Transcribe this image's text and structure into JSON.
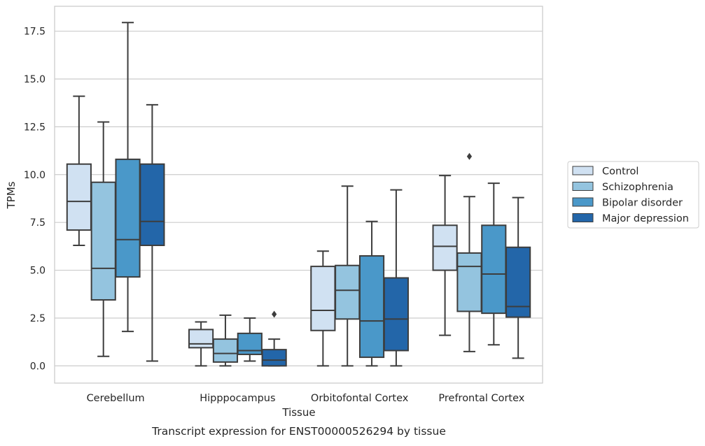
{
  "chart_data": {
    "type": "box",
    "xlabel": "Tissue",
    "ylabel": "TPMs",
    "caption": "Transcript expression for ENST00000526294 by tissue",
    "ylim": [
      -0.9,
      18.8
    ],
    "yticks": [
      "0.0",
      "2.5",
      "5.0",
      "7.5",
      "10.0",
      "12.5",
      "15.0",
      "17.5"
    ],
    "grid": "horizontal",
    "legend_position": "right",
    "categories": [
      "Cerebellum",
      "Hipppocampus",
      "Orbitofontal Cortex",
      "Prefrontal Cortex"
    ],
    "series": [
      {
        "name": "Control",
        "color": "#d0e1f2",
        "boxes": [
          {
            "whislo": 6.3,
            "q1": 7.1,
            "med": 8.6,
            "q3": 10.55,
            "whishi": 14.1,
            "fliers": []
          },
          {
            "whislo": 0.0,
            "q1": 0.95,
            "med": 1.15,
            "q3": 1.9,
            "whishi": 2.3,
            "fliers": []
          },
          {
            "whislo": 0.0,
            "q1": 1.85,
            "med": 2.9,
            "q3": 5.2,
            "whishi": 6.0,
            "fliers": []
          },
          {
            "whislo": 1.6,
            "q1": 5.0,
            "med": 6.25,
            "q3": 7.35,
            "whishi": 9.95,
            "fliers": []
          }
        ]
      },
      {
        "name": "Schizophrenia",
        "color": "#94c4df",
        "boxes": [
          {
            "whislo": 0.5,
            "q1": 3.45,
            "med": 5.1,
            "q3": 9.6,
            "whishi": 12.75,
            "fliers": []
          },
          {
            "whislo": 0.0,
            "q1": 0.2,
            "med": 0.65,
            "q3": 1.4,
            "whishi": 2.65,
            "fliers": []
          },
          {
            "whislo": 0.0,
            "q1": 2.45,
            "med": 3.95,
            "q3": 5.25,
            "whishi": 9.4,
            "fliers": []
          },
          {
            "whislo": 0.75,
            "q1": 2.85,
            "med": 5.2,
            "q3": 5.9,
            "whishi": 8.85,
            "fliers": [
              10.95
            ]
          }
        ]
      },
      {
        "name": "Bipolar disorder",
        "color": "#4a98c9",
        "boxes": [
          {
            "whislo": 1.8,
            "q1": 4.65,
            "med": 6.6,
            "q3": 10.8,
            "whishi": 17.95,
            "fliers": []
          },
          {
            "whislo": 0.25,
            "q1": 0.6,
            "med": 0.8,
            "q3": 1.7,
            "whishi": 2.5,
            "fliers": []
          },
          {
            "whislo": 0.0,
            "q1": 0.45,
            "med": 2.35,
            "q3": 5.75,
            "whishi": 7.55,
            "fliers": []
          },
          {
            "whislo": 1.1,
            "q1": 2.75,
            "med": 4.8,
            "q3": 7.35,
            "whishi": 9.55,
            "fliers": []
          }
        ]
      },
      {
        "name": "Major depression",
        "color": "#2366a9",
        "boxes": [
          {
            "whislo": 0.25,
            "q1": 6.3,
            "med": 7.55,
            "q3": 10.55,
            "whishi": 13.65,
            "fliers": []
          },
          {
            "whislo": 0.0,
            "q1": 0.0,
            "med": 0.3,
            "q3": 0.85,
            "whishi": 1.4,
            "fliers": [
              2.7
            ]
          },
          {
            "whislo": 0.0,
            "q1": 0.8,
            "med": 2.45,
            "q3": 4.6,
            "whishi": 9.2,
            "fliers": []
          },
          {
            "whislo": 0.4,
            "q1": 2.55,
            "med": 3.1,
            "q3": 6.2,
            "whishi": 8.8,
            "fliers": []
          }
        ]
      }
    ]
  }
}
